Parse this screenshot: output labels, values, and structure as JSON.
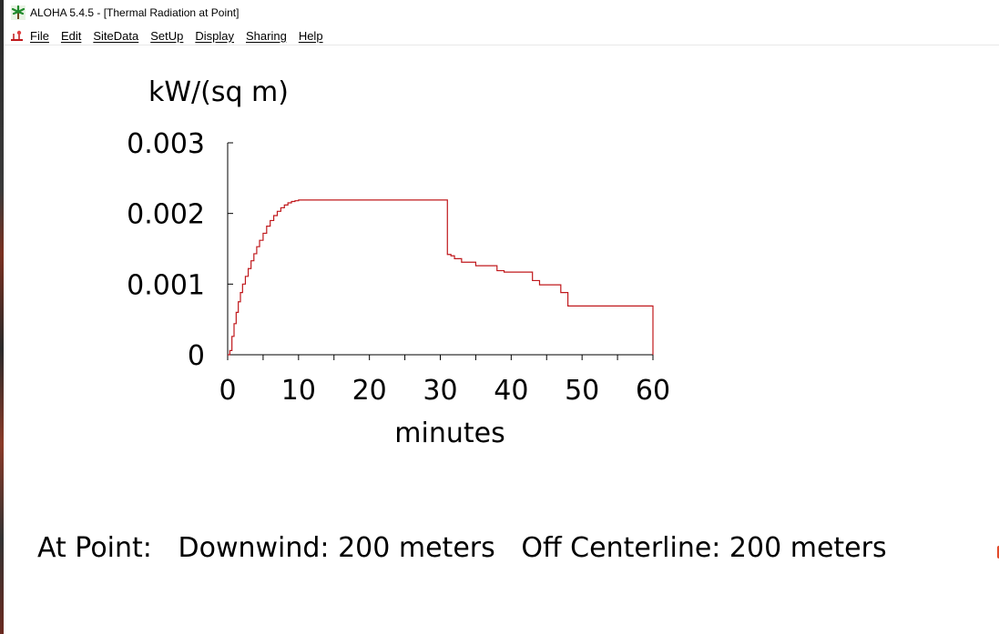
{
  "window": {
    "title": "ALOHA 5.4.5 - [Thermal Radiation at Point]"
  },
  "menu": {
    "items": [
      {
        "name": "menu-file",
        "label": "File"
      },
      {
        "name": "menu-edit",
        "label": "Edit"
      },
      {
        "name": "menu-sitedata",
        "label": "SiteData"
      },
      {
        "name": "menu-setup",
        "label": "SetUp"
      },
      {
        "name": "menu-display",
        "label": "Display"
      },
      {
        "name": "menu-sharing",
        "label": "Sharing"
      },
      {
        "name": "menu-help",
        "label": "Help"
      }
    ]
  },
  "icons": {
    "app": "palm-tree-icon",
    "system": "document-system-icon"
  },
  "chart_data": {
    "type": "line",
    "ylabel": "kW/(sq m)",
    "xlabel": "minutes",
    "xlim": [
      0,
      60
    ],
    "ylim": [
      0,
      0.003
    ],
    "xticks": [
      "0",
      "10",
      "20",
      "30",
      "40",
      "50",
      "60"
    ],
    "yticks": [
      "0",
      "0.001",
      "0.002",
      "0.003"
    ],
    "grid": false,
    "line_color": "#c0181c",
    "step": true,
    "series": [
      {
        "x": [
          0,
          0.3,
          0.6,
          0.9,
          1.2,
          1.5,
          1.8,
          2.1,
          2.5,
          2.9,
          3.3,
          3.7,
          4.1,
          4.5,
          5,
          5.5,
          6,
          6.5,
          7,
          7.5,
          8,
          8.5,
          9,
          9.5,
          10,
          31,
          31.5,
          32,
          33,
          35,
          38,
          39,
          43,
          44,
          47,
          48,
          60
        ],
        "y": [
          0,
          6e-05,
          0.00026,
          0.00044,
          0.0006,
          0.00075,
          0.00088,
          0.001,
          0.00111,
          0.00122,
          0.00133,
          0.00143,
          0.00153,
          0.00162,
          0.00172,
          0.00182,
          0.0019,
          0.00197,
          0.00203,
          0.00208,
          0.00212,
          0.00215,
          0.00217,
          0.00218,
          0.00219,
          0.00142,
          0.0014,
          0.00136,
          0.00131,
          0.00126,
          0.00119,
          0.00117,
          0.00105,
          0.00099,
          0.00088,
          0.00069,
          0.00069
        ]
      }
    ]
  },
  "footer": {
    "label": "At Point:",
    "downwind": "Downwind: 200 meters",
    "off_centerline": "Off Centerline: 200 meters"
  },
  "colors": {
    "line": "#c0181c",
    "axis": "#000000"
  }
}
